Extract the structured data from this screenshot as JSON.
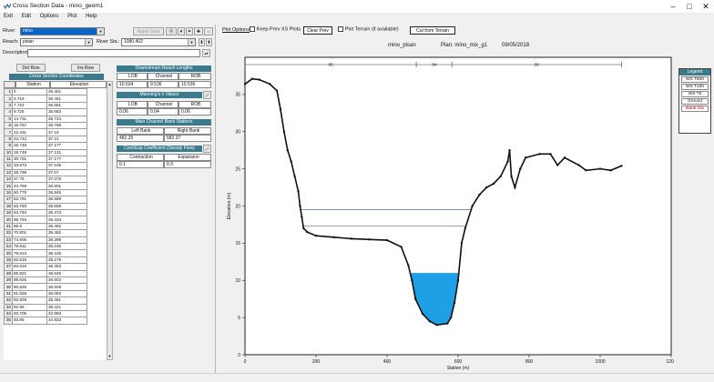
{
  "window": {
    "title": "Cross Section Data - mino_geom1",
    "minimize": "–",
    "maximize": "□",
    "close": "✕"
  },
  "menu": [
    "Exit",
    "Edit",
    "Options",
    "Plot",
    "Help"
  ],
  "river": {
    "label": "River:",
    "value": "mino",
    "apply_label": "Apply Data"
  },
  "reach": {
    "label": "Reach:",
    "value": "pisan",
    "river_sta_label": "River Sta.:",
    "river_sta_value": "1080.402"
  },
  "description": {
    "label": "Description",
    "value": ""
  },
  "row_buttons": {
    "del_row": "Del Row",
    "ins_row": "Ins Row"
  },
  "station_table": {
    "title": "Cross Section Coordinates",
    "columns": [
      "Station",
      "Elevation"
    ],
    "rows": [
      [
        "1",
        "0",
        "36.401"
      ],
      [
        "2",
        "4.719",
        "36.461"
      ],
      [
        "3",
        "7.722",
        "36.581"
      ],
      [
        "4",
        "9.725",
        "36.683"
      ],
      [
        "5",
        "14.731",
        "36.723"
      ],
      [
        "6",
        "15.757",
        "36.768"
      ],
      [
        "7",
        "22.431",
        "37.18"
      ],
      [
        "8",
        "23.742",
        "37.21"
      ],
      [
        "9",
        "26.746",
        "37.177"
      ],
      [
        "10",
        "28.749",
        "37.131"
      ],
      [
        "11",
        "30.751",
        "37.177"
      ],
      [
        "12",
        "33.673",
        "37.105"
      ],
      [
        "13",
        "36.799",
        "37.07"
      ],
      [
        "14",
        "37.76",
        "37.075"
      ],
      [
        "15",
        "44.769",
        "36.901"
      ],
      [
        "16",
        "50.776",
        "36.845"
      ],
      [
        "17",
        "52.791",
        "36.589"
      ],
      [
        "18",
        "63.793",
        "36.558"
      ],
      [
        "19",
        "64.794",
        "36.473"
      ],
      [
        "20",
        "65.793",
        "36.434"
      ],
      [
        "21",
        "69.8",
        "36.492"
      ],
      [
        "22",
        "70.801",
        "36.492"
      ],
      [
        "23",
        "74.806",
        "36.399"
      ],
      [
        "24",
        "78.811",
        "36.245"
      ],
      [
        "25",
        "79.813",
        "36.225"
      ],
      [
        "26",
        "82.816",
        "36.279"
      ],
      [
        "27",
        "83.818",
        "36.353"
      ],
      [
        "28",
        "86.821",
        "36.645"
      ],
      [
        "29",
        "89.825",
        "36.604"
      ],
      [
        "30",
        "90.826",
        "36.509"
      ],
      [
        "31",
        "91.828",
        "36.083"
      ],
      [
        "32",
        "92.829",
        "35.481"
      ],
      [
        "33",
        "92.99",
        "35.421"
      ],
      [
        "34",
        "93.705",
        "34.983"
      ],
      [
        "35",
        "93.85",
        "34.933"
      ]
    ]
  },
  "reach_lengths": {
    "title": "Downstream Reach Lengths",
    "cols": [
      "LOB",
      "Channel",
      "ROB"
    ],
    "values": [
      "10.534",
      "9.536",
      "10.536"
    ]
  },
  "mannings": {
    "title": "Manning's n Values",
    "cols": [
      "LOB",
      "Channel",
      "ROB"
    ],
    "values": [
      "0.06",
      "0.04",
      "0.06"
    ]
  },
  "bank_stations": {
    "title": "Main Channel Bank Stations",
    "cols": [
      "Left Bank",
      "Right Bank"
    ],
    "values": [
      "482.25",
      "582.37"
    ]
  },
  "contraction": {
    "title": "Cont\\Exp Coefficient (Steady Flow)",
    "cols": [
      "Contraction",
      "Expansion"
    ],
    "values": [
      "0.1",
      "0.3"
    ]
  },
  "plot_toolbar": {
    "plot_options": "Plot Options",
    "keep_prev": "Keep Prev XS Plots",
    "clear_prev": "Clear Prev",
    "plot_terrain": "Plot Terrain (if available)",
    "cut_terrain": "Cut from Terrain"
  },
  "plot": {
    "header_left": "mino_pisan",
    "header_plan": "Plan: mino_mix_g1",
    "header_date": "09/05/2018",
    "n_labels": [
      ".06",
      ".04",
      ".06"
    ],
    "legend_title": "Legend",
    "legend_items": [
      "WS T500",
      "WS T100",
      "WS T5",
      "Ground",
      "Bank Sta"
    ]
  },
  "chart_data": {
    "type": "line",
    "xlabel": "Station (m)",
    "ylabel": "Elevation (m)",
    "xlim": [
      0,
      1200
    ],
    "ylim": [
      0,
      40
    ],
    "xticks": [
      0,
      200,
      400,
      600,
      800,
      1000,
      1200
    ],
    "yticks": [
      0,
      5,
      10,
      15,
      20,
      25,
      30,
      35
    ],
    "ground": [
      [
        0,
        36.4
      ],
      [
        20,
        37.1
      ],
      [
        40,
        37.0
      ],
      [
        70,
        36.4
      ],
      [
        90,
        35.5
      ],
      [
        100,
        33.0
      ],
      [
        110,
        30.0
      ],
      [
        120,
        27.5
      ],
      [
        130,
        26.0
      ],
      [
        140,
        24.0
      ],
      [
        150,
        22.0
      ],
      [
        155,
        20.0
      ],
      [
        160,
        18.5
      ],
      [
        165,
        17.0
      ],
      [
        175,
        16.5
      ],
      [
        200,
        16.0
      ],
      [
        250,
        15.8
      ],
      [
        300,
        15.6
      ],
      [
        350,
        15.5
      ],
      [
        400,
        15.4
      ],
      [
        440,
        14.5
      ],
      [
        460,
        12.0
      ],
      [
        470,
        10.0
      ],
      [
        480,
        7.5
      ],
      [
        500,
        5.5
      ],
      [
        520,
        4.5
      ],
      [
        540,
        4.0
      ],
      [
        570,
        4.2
      ],
      [
        580,
        5.0
      ],
      [
        590,
        7.0
      ],
      [
        600,
        10.0
      ],
      [
        610,
        15.0
      ],
      [
        620,
        17.0
      ],
      [
        640,
        20.0
      ],
      [
        660,
        21.5
      ],
      [
        680,
        22.5
      ],
      [
        700,
        23.0
      ],
      [
        720,
        24.0
      ],
      [
        740,
        26.0
      ],
      [
        745,
        27.5
      ],
      [
        750,
        24.0
      ],
      [
        760,
        22.5
      ],
      [
        775,
        25.0
      ],
      [
        790,
        26.5
      ],
      [
        830,
        27.0
      ],
      [
        860,
        27.0
      ],
      [
        880,
        25.5
      ],
      [
        900,
        26.5
      ],
      [
        940,
        25.5
      ],
      [
        960,
        24.8
      ],
      [
        1000,
        25.0
      ],
      [
        1030,
        24.8
      ],
      [
        1060,
        25.4
      ]
    ],
    "ws_t500": 19.5,
    "ws_t100": 17.3,
    "ws_t5": 11.0,
    "bank_stations": [
      482.25,
      582.37
    ]
  }
}
